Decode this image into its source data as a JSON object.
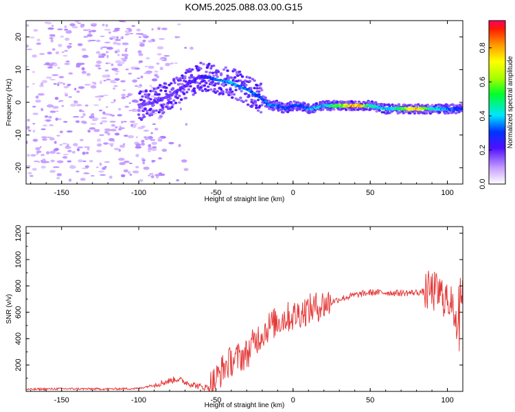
{
  "chart_data": [
    {
      "type": "heatmap",
      "title": "KOM5.2025.088.03.00.G15",
      "xlabel": "Height of straight line (km)",
      "ylabel": "Frequency (Hz)",
      "xlim": [
        -173,
        110
      ],
      "ylim": [
        -25,
        25
      ],
      "xticks": [
        -150,
        -100,
        -50,
        0,
        50,
        100
      ],
      "yticks": [
        -20,
        -10,
        0,
        10,
        20
      ],
      "colorbar": {
        "label": "Normalized spectral amplitude",
        "range": [
          0,
          0.96
        ],
        "ticks": [
          0.0,
          0.2,
          0.4,
          0.6,
          0.8
        ]
      },
      "ridge": {
        "x": [
          -100,
          -90,
          -80,
          -70,
          -60,
          -50,
          -40,
          -30,
          -20,
          -15,
          -10,
          -5,
          0,
          5,
          10,
          20,
          30,
          40,
          50,
          60,
          70,
          80,
          90,
          100,
          110
        ],
        "freq": [
          -1,
          0,
          2,
          5,
          8,
          7,
          6,
          4,
          1,
          -1,
          -1,
          -2,
          -1,
          -1,
          -2,
          -1,
          -1,
          -1,
          -1,
          -2,
          -2,
          -2,
          -2,
          -2,
          -2
        ],
        "amplitude": [
          0.15,
          0.18,
          0.18,
          0.2,
          0.22,
          0.32,
          0.38,
          0.34,
          0.3,
          0.35,
          0.32,
          0.3,
          0.28,
          0.3,
          0.35,
          0.4,
          0.55,
          0.85,
          0.45,
          0.4,
          0.5,
          0.75,
          0.45,
          0.35,
          0.28
        ]
      }
    },
    {
      "type": "line",
      "xlabel": "Height of straight line (km)",
      "ylabel": "SNR (v/v)",
      "xlim": [
        -173,
        110
      ],
      "ylim": [
        0,
        1250
      ],
      "xticks": [
        -150,
        -100,
        -50,
        0,
        50,
        100
      ],
      "yticks": [
        200,
        400,
        600,
        800,
        1000,
        1200
      ],
      "color": "#e53a3a",
      "x": [
        -173,
        -150,
        -120,
        -100,
        -90,
        -80,
        -75,
        -70,
        -60,
        -55,
        -50,
        -45,
        -40,
        -35,
        -30,
        -28,
        -25,
        -20,
        -15,
        -10,
        -5,
        0,
        5,
        10,
        15,
        20,
        30,
        40,
        50,
        60,
        70,
        80,
        90,
        95,
        100,
        104,
        106,
        108,
        110
      ],
      "y": [
        15,
        20,
        18,
        22,
        50,
        80,
        95,
        70,
        35,
        30,
        90,
        180,
        230,
        260,
        280,
        320,
        380,
        440,
        500,
        530,
        560,
        570,
        600,
        620,
        640,
        660,
        700,
        730,
        750,
        750,
        745,
        750,
        760,
        740,
        700,
        620,
        500,
        700,
        720
      ]
    }
  ]
}
